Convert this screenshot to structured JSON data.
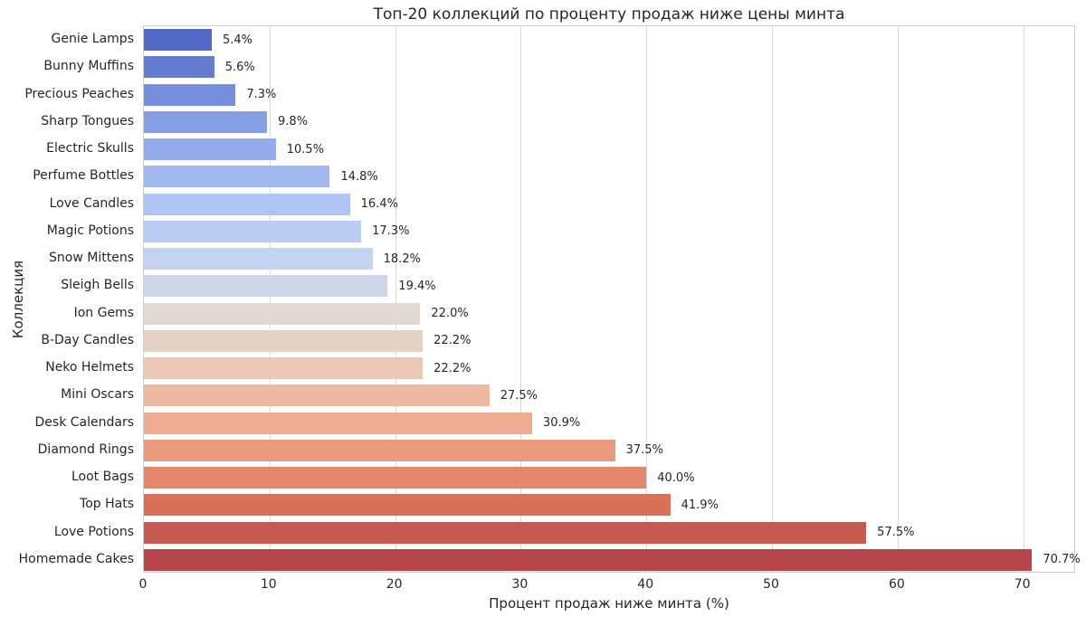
{
  "chart_data": {
    "type": "bar",
    "orientation": "horizontal",
    "title": "Топ-20 коллекций по проценту продаж ниже цены минта",
    "xlabel": "Процент продаж ниже минта (%)",
    "ylabel": "Коллекция",
    "xlim": [
      0,
      74.2
    ],
    "xticks": [
      0,
      10,
      20,
      30,
      40,
      50,
      60,
      70
    ],
    "grid": "vertical-only",
    "legend": "none",
    "categories": [
      "Genie Lamps",
      "Bunny Muffins",
      "Precious Peaches",
      "Sharp Tongues",
      "Electric Skulls",
      "Perfume Bottles",
      "Love Candles",
      "Magic Potions",
      "Snow Mittens",
      "Sleigh Bells",
      "Ion Gems",
      "B-Day Candles",
      "Neko Helmets",
      "Mini Oscars",
      "Desk Calendars",
      "Diamond Rings",
      "Loot Bags",
      "Top Hats",
      "Love Potions",
      "Homemade Cakes"
    ],
    "values": [
      5.4,
      5.6,
      7.3,
      9.8,
      10.5,
      14.8,
      16.4,
      17.3,
      18.2,
      19.4,
      22.0,
      22.2,
      22.2,
      27.5,
      30.9,
      37.5,
      40.0,
      41.9,
      57.5,
      70.7
    ],
    "value_labels": [
      "5.4%",
      "5.6%",
      "7.3%",
      "9.8%",
      "10.5%",
      "14.8%",
      "16.4%",
      "17.3%",
      "18.2%",
      "19.4%",
      "22.0%",
      "22.2%",
      "22.2%",
      "27.5%",
      "30.9%",
      "37.5%",
      "40.0%",
      "41.9%",
      "57.5%",
      "70.7%"
    ],
    "bar_colors": [
      "#5268c4",
      "#657dd1",
      "#768edb",
      "#869ee4",
      "#95aceb",
      "#a2b9f0",
      "#afc4f4",
      "#bacdf4",
      "#c4d3f0",
      "#cdd6ea",
      "#dfd9d3",
      "#e5d2c4",
      "#e9c8b5",
      "#edbaa1",
      "#eeac90",
      "#ea9a7e",
      "#e4876c",
      "#d9705a",
      "#c75a4e",
      "#b7464a"
    ],
    "colors": {
      "background": "#ffffff",
      "grid": "#d9d9d9",
      "axis_border": "#cccccc",
      "text": "#262626"
    }
  }
}
